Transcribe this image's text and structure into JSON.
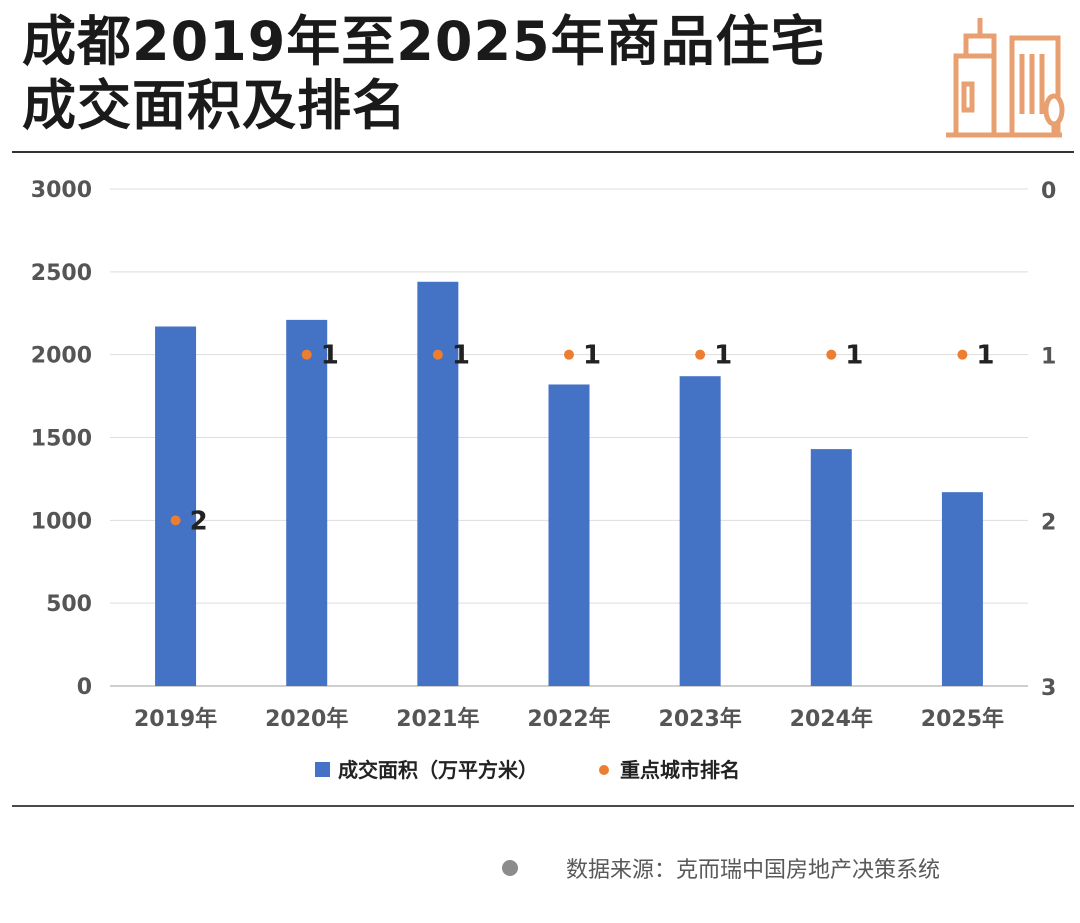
{
  "header": {
    "title_line1": "成都2019年至2025年商品住宅",
    "title_line2": "成交面积及排名"
  },
  "logo": {
    "icon": "city-buildings-icon",
    "color": "#E8A070"
  },
  "chart_data": {
    "type": "bar",
    "categories": [
      "2019年",
      "2020年",
      "2021年",
      "2022年",
      "2023年",
      "2024年",
      "2025年"
    ],
    "series": [
      {
        "name": "成交面积（万平方米）",
        "kind": "bar",
        "axis": "left",
        "color": "#4472C4",
        "values": [
          2170,
          2210,
          2440,
          1820,
          1870,
          1430,
          1170
        ]
      },
      {
        "name": "重点城市排名",
        "kind": "scatter",
        "axis": "right",
        "color": "#ED7D31",
        "values": [
          2,
          1,
          1,
          1,
          1,
          1,
          1
        ]
      }
    ],
    "left_axis": {
      "ylim": [
        0,
        3000
      ],
      "ticks": [
        "0",
        "500",
        "1000",
        "1500",
        "2000",
        "2500",
        "3000"
      ]
    },
    "right_axis": {
      "ylim": [
        0,
        3
      ],
      "reversed": true,
      "ticks": [
        "0",
        "1",
        "2",
        "3"
      ]
    },
    "grid": true,
    "legend_position": "bottom"
  },
  "footer": {
    "source": "数据来源：克而瑞中国房地产决策系统"
  }
}
